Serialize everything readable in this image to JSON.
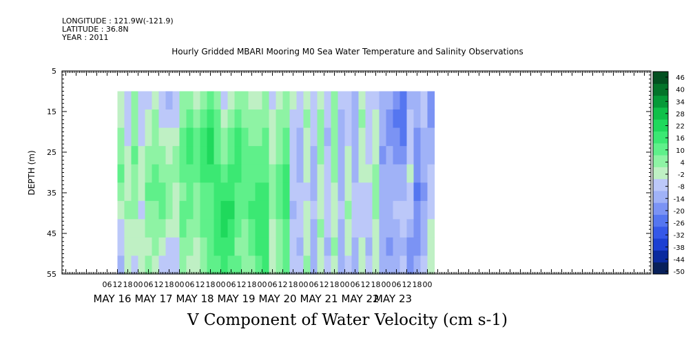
{
  "header": {
    "longitude": "LONGITUDE : 121.9W(-121.9)",
    "latitude": "LATITUDE : 36.8N",
    "year": "YEAR : 2011"
  },
  "title": "Hourly Gridded MBARI Mooring M0 Sea Water Temperature and Salinity Observations",
  "caption": "V Component of Water Velocity (cm s-1)",
  "chart_data": {
    "type": "heatmap",
    "title": "Hourly Gridded MBARI Mooring M0 Sea Water Temperature and Salinity Observations",
    "xlabel": "",
    "ylabel": "DEPTH (m)",
    "ylim": [
      55,
      5
    ],
    "y_ticks": [
      5,
      15,
      25,
      35,
      45,
      55
    ],
    "data_depth_range": [
      10,
      55
    ],
    "x_hour_ticks": [
      "06",
      "12",
      "18",
      "00",
      "06",
      "12",
      "18",
      "00",
      "06",
      "12",
      "18",
      "00",
      "06",
      "12",
      "18",
      "00",
      "06",
      "12",
      "18",
      "00",
      "06",
      "12",
      "18",
      "00",
      "06",
      "12",
      "18",
      "00",
      "06",
      "12",
      "18",
      "00"
    ],
    "x_day_labels": [
      "MAY 16",
      "MAY 17",
      "MAY 18",
      "MAY 19",
      "MAY 20",
      "MAY 21",
      "MAY 22",
      "MAY 23"
    ],
    "colorbar_labels": [
      "46",
      "40",
      "34",
      "28",
      "22",
      "16",
      "10",
      "4",
      "-2",
      "-8",
      "-14",
      "-20",
      "-26",
      "-32",
      "-38",
      "-44",
      "-50"
    ],
    "colormap": [
      "#08205a",
      "#0a2a9e",
      "#1c3fd2",
      "#3558e8",
      "#5576f0",
      "#7b93f4",
      "#a0b2f7",
      "#bcc8f9",
      "#bff0c4",
      "#8ef3a4",
      "#5ff08a",
      "#3be873",
      "#1fd95c",
      "#0fc049",
      "#069a38",
      "#04742a",
      "#035020"
    ],
    "value_range": [
      -50,
      52
    ],
    "grid": false,
    "columns": [
      {
        "start": "MAY 15 12:00",
        "values": [
          0,
          2,
          6,
          8,
          10,
          6,
          2,
          -4,
          -8,
          -10
        ]
      },
      {
        "start": "MAY 15 16:00",
        "values": [
          -6,
          -6,
          -4,
          -2,
          0,
          2,
          4,
          2,
          0,
          -2
        ]
      },
      {
        "start": "MAY 15 20:00",
        "values": [
          4,
          6,
          8,
          10,
          8,
          6,
          4,
          2,
          -2,
          -6
        ]
      },
      {
        "start": "MAY 16 00:00",
        "values": [
          -8,
          -6,
          -4,
          -2,
          0,
          -2,
          -4,
          -2,
          0,
          2
        ]
      },
      {
        "start": "MAY 16 04:00",
        "values": [
          -4,
          -2,
          2,
          6,
          8,
          10,
          8,
          4,
          2,
          4
        ]
      },
      {
        "start": "MAY 16 08:00",
        "values": [
          2,
          4,
          6,
          8,
          10,
          12,
          8,
          6,
          4,
          -2
        ]
      },
      {
        "start": "MAY 16 12:00",
        "values": [
          -6,
          -4,
          0,
          4,
          8,
          10,
          12,
          6,
          2,
          -4
        ]
      },
      {
        "start": "MAY 16 16:00",
        "values": [
          -10,
          -8,
          -2,
          2,
          4,
          6,
          4,
          -2,
          -6,
          -8
        ]
      },
      {
        "start": "MAY 16 20:00",
        "values": [
          -6,
          -4,
          2,
          6,
          4,
          2,
          0,
          -2,
          -4,
          -6
        ]
      },
      {
        "start": "MAY 17 00:00",
        "values": [
          4,
          8,
          12,
          14,
          10,
          8,
          10,
          12,
          8,
          4
        ]
      },
      {
        "start": "MAY 17 04:00",
        "values": [
          6,
          10,
          16,
          18,
          14,
          12,
          10,
          8,
          6,
          2
        ]
      },
      {
        "start": "MAY 17 08:00",
        "values": [
          2,
          6,
          10,
          12,
          10,
          8,
          6,
          4,
          2,
          0
        ]
      },
      {
        "start": "MAY 17 12:00",
        "values": [
          8,
          12,
          18,
          20,
          16,
          14,
          12,
          10,
          8,
          6
        ]
      },
      {
        "start": "MAY 17 16:00",
        "values": [
          12,
          16,
          22,
          22,
          18,
          14,
          12,
          10,
          12,
          14
        ]
      },
      {
        "start": "MAY 17 20:00",
        "values": [
          6,
          10,
          14,
          14,
          16,
          18,
          20,
          18,
          16,
          14
        ]
      },
      {
        "start": "MAY 18 00:00",
        "values": [
          -4,
          -2,
          4,
          8,
          14,
          18,
          22,
          24,
          20,
          18
        ]
      },
      {
        "start": "MAY 18 04:00",
        "values": [
          2,
          6,
          10,
          14,
          18,
          20,
          22,
          20,
          18,
          14
        ]
      },
      {
        "start": "MAY 18 08:00",
        "values": [
          8,
          12,
          16,
          18,
          16,
          14,
          12,
          10,
          8,
          10
        ]
      },
      {
        "start": "MAY 18 12:00",
        "values": [
          4,
          8,
          10,
          12,
          14,
          12,
          10,
          8,
          6,
          4
        ]
      },
      {
        "start": "MAY 18 16:00",
        "values": [
          0,
          4,
          8,
          10,
          12,
          14,
          16,
          14,
          12,
          8
        ]
      },
      {
        "start": "MAY 18 20:00",
        "values": [
          2,
          4,
          8,
          10,
          12,
          16,
          18,
          18,
          16,
          14
        ]
      },
      {
        "start": "MAY 19 00:00",
        "values": [
          6,
          8,
          10,
          12,
          14,
          16,
          18,
          20,
          18,
          16
        ]
      },
      {
        "start": "MAY 19 04:00",
        "values": [
          -4,
          -2,
          0,
          2,
          4,
          6,
          4,
          2,
          0,
          -2
        ]
      },
      {
        "start": "MAY 19 08:00",
        "values": [
          2,
          4,
          6,
          8,
          10,
          12,
          10,
          8,
          6,
          4
        ]
      },
      {
        "start": "MAY 19 12:00",
        "values": [
          4,
          6,
          10,
          14,
          16,
          18,
          16,
          14,
          12,
          10
        ]
      },
      {
        "start": "MAY 19 16:00",
        "values": [
          -2,
          -4,
          -6,
          -8,
          -6,
          -8,
          -10,
          -8,
          -6,
          -4
        ]
      },
      {
        "start": "MAY 19 20:00",
        "values": [
          -6,
          -8,
          -10,
          -12,
          -10,
          -8,
          -6,
          -8,
          -10,
          -8
        ]
      },
      {
        "start": "MAY 20 00:00",
        "values": [
          2,
          4,
          2,
          0,
          -2,
          -4,
          -2,
          0,
          2,
          4
        ]
      },
      {
        "start": "MAY 20 04:00",
        "values": [
          -4,
          -6,
          -8,
          -10,
          -12,
          -10,
          -8,
          -10,
          -12,
          -10
        ]
      },
      {
        "start": "MAY 20 08:00",
        "values": [
          2,
          4,
          6,
          4,
          2,
          0,
          2,
          4,
          2,
          0
        ]
      },
      {
        "start": "MAY 20 12:00",
        "values": [
          -6,
          -8,
          -10,
          -8,
          -6,
          -4,
          -6,
          -8,
          -10,
          -8
        ]
      },
      {
        "start": "MAY 20 16:00",
        "values": [
          4,
          6,
          8,
          6,
          4,
          2,
          0,
          2,
          4,
          2
        ]
      },
      {
        "start": "MAY 20 20:00",
        "values": [
          -8,
          -10,
          -12,
          -14,
          -12,
          -10,
          -8,
          -10,
          -12,
          -10
        ]
      },
      {
        "start": "MAY 21 00:00",
        "values": [
          -4,
          -6,
          -4,
          -2,
          0,
          2,
          4,
          2,
          -2,
          -4
        ]
      },
      {
        "start": "MAY 21 04:00",
        "values": [
          -10,
          -12,
          -14,
          -12,
          -10,
          -8,
          -6,
          -8,
          -10,
          -12
        ]
      },
      {
        "start": "MAY 21 08:00",
        "values": [
          2,
          4,
          2,
          0,
          -2,
          -4,
          -6,
          -4,
          -2,
          0
        ]
      },
      {
        "start": "MAY 21 12:00",
        "values": [
          -6,
          -8,
          -6,
          -4,
          -2,
          -4,
          -6,
          -8,
          -10,
          -8
        ]
      },
      {
        "start": "MAY 21 16:00",
        "values": [
          -4,
          -2,
          0,
          2,
          4,
          6,
          4,
          2,
          0,
          -2
        ]
      },
      {
        "start": "MAY 21 20:00",
        "values": [
          -10,
          -12,
          -14,
          -16,
          -14,
          -12,
          -10,
          -12,
          -14,
          -12
        ]
      },
      {
        "start": "MAY 22 00:00",
        "values": [
          -14,
          -18,
          -16,
          -14,
          -12,
          -10,
          -12,
          -14,
          -16,
          -14
        ]
      },
      {
        "start": "MAY 22 04:00",
        "values": [
          -18,
          -22,
          -20,
          -16,
          -12,
          -10,
          -8,
          -10,
          -12,
          -10
        ]
      },
      {
        "start": "MAY 22 08:00",
        "values": [
          -22,
          -26,
          -22,
          -18,
          -14,
          -10,
          -6,
          -8,
          -10,
          -8
        ]
      },
      {
        "start": "MAY 22 12:00",
        "values": [
          -10,
          -8,
          -6,
          -4,
          -2,
          -4,
          -8,
          -12,
          -16,
          -18
        ]
      },
      {
        "start": "MAY 22 16:00",
        "values": [
          -12,
          -14,
          -16,
          -18,
          -20,
          -22,
          -20,
          -18,
          -16,
          -14
        ]
      },
      {
        "start": "MAY 22 20:00",
        "values": [
          -6,
          -8,
          -10,
          -12,
          -14,
          -16,
          -14,
          -12,
          -10,
          -8
        ]
      },
      {
        "start": "MAY 23 00:00",
        "values": [
          -16,
          -18,
          -14,
          -10,
          -8,
          -6,
          -4,
          -2,
          0,
          2
        ]
      }
    ]
  }
}
